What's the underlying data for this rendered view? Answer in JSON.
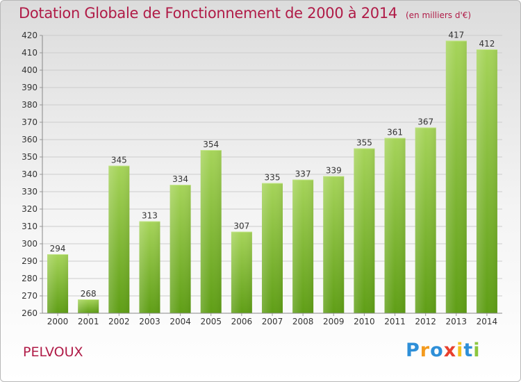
{
  "header": {
    "title": "Dotation Globale de Fonctionnement de 2000 à 2014",
    "unit": "(en milliers d'€)"
  },
  "footer": {
    "commune": "PELVOUX",
    "logo_text": "Proxiti"
  },
  "colors": {
    "title": "#b01b47",
    "bar_light": "#a6d45a",
    "bar_dark": "#5f9e16",
    "grid": "#cccccc"
  },
  "chart_data": {
    "type": "bar",
    "title": "Dotation Globale de Fonctionnement de 2000 à 2014",
    "subtitle": "(en milliers d'€)",
    "xlabel": "",
    "ylabel": "",
    "categories": [
      "2000",
      "2001",
      "2002",
      "2003",
      "2004",
      "2005",
      "2006",
      "2007",
      "2008",
      "2009",
      "2010",
      "2011",
      "2012",
      "2013",
      "2014"
    ],
    "values": [
      294,
      268,
      345,
      313,
      334,
      354,
      307,
      335,
      337,
      339,
      355,
      361,
      367,
      417,
      412
    ],
    "ylim": [
      260,
      420
    ],
    "yticks": [
      260,
      270,
      280,
      290,
      300,
      310,
      320,
      330,
      340,
      350,
      360,
      370,
      380,
      390,
      400,
      410,
      420
    ],
    "grid": true,
    "data_labels": true
  }
}
